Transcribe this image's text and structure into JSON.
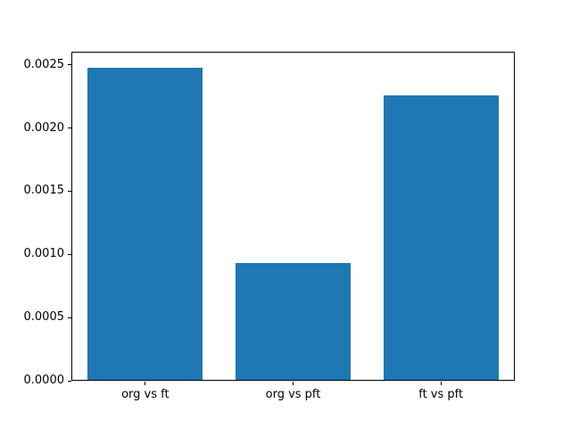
{
  "chart_data": {
    "type": "bar",
    "title": "",
    "xlabel": "",
    "ylabel": "",
    "categories": [
      "org vs ft",
      "org vs pft",
      "ft vs pft"
    ],
    "values": [
      0.00248,
      0.00093,
      0.00226
    ],
    "ylim": [
      0,
      0.002604
    ],
    "yticks": [
      0.0,
      0.0005,
      0.001,
      0.0015,
      0.002,
      0.0025
    ],
    "ytick_labels": [
      "0.0000",
      "0.0005",
      "0.0010",
      "0.0015",
      "0.0020",
      "0.0025"
    ],
    "bar_color": "#1f77b4",
    "bar_width_fraction": 0.78,
    "grid": false,
    "legend": null,
    "background_color": "#ffffff",
    "axis_color": "#000000"
  }
}
